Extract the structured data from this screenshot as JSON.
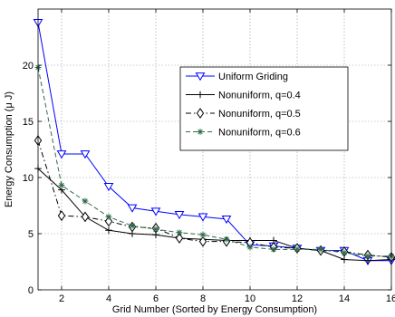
{
  "chart_data": {
    "type": "line",
    "xlabel": "Grid Number (Sorted by Energy Consumption)",
    "ylabel": "Energy Consumption (μ J)",
    "xlim": [
      1,
      16
    ],
    "ylim": [
      0,
      25
    ],
    "xticks": [
      2,
      4,
      6,
      8,
      10,
      12,
      14,
      16
    ],
    "yticks": [
      0,
      5,
      10,
      15,
      20
    ],
    "grid": true,
    "legend_position": "upper-right",
    "x": [
      1,
      2,
      3,
      4,
      5,
      6,
      7,
      8,
      9,
      10,
      11,
      12,
      13,
      14,
      15,
      16
    ],
    "series": [
      {
        "name": "Uniform Griding",
        "color": "#0000ff",
        "line_style": "solid",
        "marker": "triangle-down",
        "values": [
          23.8,
          12.1,
          12.1,
          9.2,
          7.3,
          7.0,
          6.7,
          6.5,
          6.3,
          4.0,
          3.9,
          3.7,
          3.5,
          3.5,
          2.6,
          2.6
        ]
      },
      {
        "name": "Nonuniform, q=0.4",
        "color": "#000000",
        "line_style": "solid",
        "marker": "plus",
        "values": [
          10.8,
          8.9,
          6.5,
          5.3,
          5.0,
          4.9,
          4.6,
          4.5,
          4.4,
          4.4,
          4.4,
          3.7,
          3.5,
          2.7,
          2.6,
          2.7
        ]
      },
      {
        "name": "Nonuniform, q=0.5",
        "color": "#000000",
        "line_style": "dashdot",
        "marker": "diamond",
        "values": [
          13.3,
          6.6,
          6.5,
          6.1,
          5.6,
          5.5,
          4.6,
          4.3,
          4.3,
          4.2,
          3.8,
          3.7,
          3.5,
          3.4,
          3.1,
          2.9
        ]
      },
      {
        "name": "Nonuniform, q=0.6",
        "color": "#2e6b4a",
        "line_style": "dashed",
        "marker": "star",
        "values": [
          19.8,
          9.3,
          7.9,
          6.5,
          5.7,
          5.4,
          5.1,
          4.9,
          4.5,
          3.8,
          3.6,
          3.6,
          3.6,
          3.3,
          3.0,
          3.0
        ]
      }
    ]
  }
}
